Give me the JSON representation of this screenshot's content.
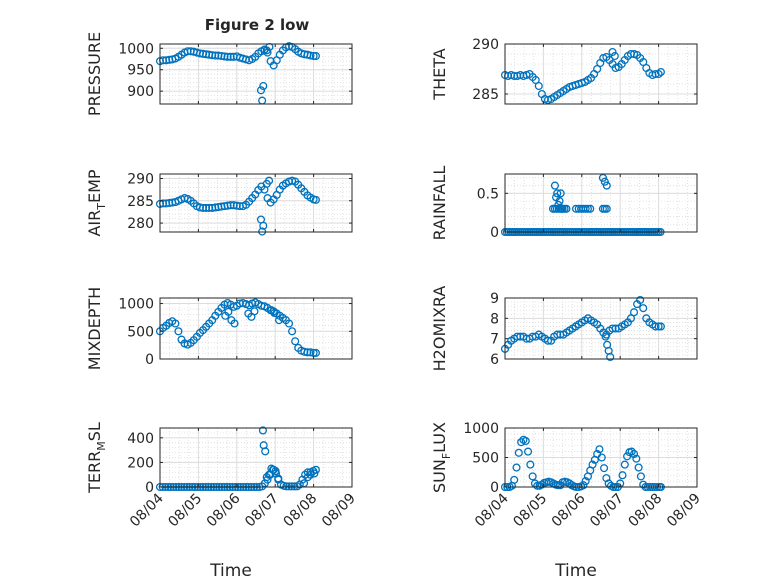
{
  "figure": {
    "title": "Figure 2 low"
  },
  "chart_data": [
    {
      "type": "scatter",
      "ylabel": "PRESSURE",
      "ylim": [
        870,
        1010
      ],
      "yticks": [
        900,
        950,
        1000
      ],
      "yticklabels": [
        "900",
        "950",
        "1000"
      ],
      "xticks": [
        0,
        1,
        2,
        3,
        4,
        5
      ],
      "xticklabels": [
        "",
        "",
        "",
        "",
        "",
        ""
      ],
      "xlabel": "",
      "x": [
        0,
        0.08,
        0.16,
        0.24,
        0.32,
        0.4,
        0.48,
        0.56,
        0.64,
        0.72,
        0.8,
        0.88,
        0.96,
        1.04,
        1.12,
        1.2,
        1.28,
        1.36,
        1.44,
        1.52,
        1.6,
        1.68,
        1.76,
        1.84,
        1.92,
        2,
        2.08,
        2.16,
        2.24,
        2.32,
        2.4,
        2.48,
        2.56,
        2.64,
        2.72,
        2.8,
        2.88,
        2.96,
        3.04,
        3.12,
        3.2,
        3.28,
        3.36,
        3.44,
        3.52,
        3.6,
        3.68,
        3.76,
        3.84,
        3.92,
        4,
        4.06,
        2.63,
        2.66,
        2.69,
        2.72,
        2.78,
        2.85
      ],
      "y": [
        970,
        972,
        972,
        973,
        974,
        976,
        980,
        985,
        990,
        993,
        993,
        992,
        990,
        988,
        987,
        986,
        985,
        984,
        983,
        983,
        982,
        981,
        980,
        980,
        980,
        981,
        978,
        976,
        974,
        972,
        975,
        980,
        988,
        993,
        996,
        990,
        970,
        960,
        972,
        985,
        995,
        1002,
        1005,
        1003,
        998,
        992,
        988,
        986,
        985,
        983,
        982,
        982,
        902,
        878,
        912,
        997,
        995,
        1003
      ]
    },
    {
      "type": "scatter",
      "ylabel": "THETA",
      "ylim": [
        284,
        290
      ],
      "yticks": [
        285,
        290
      ],
      "yticklabels": [
        "285",
        "290"
      ],
      "xticks": [
        0,
        1,
        2,
        3,
        4,
        5
      ],
      "xticklabels": [
        "",
        "",
        "",
        "",
        "",
        ""
      ],
      "xlabel": "",
      "x": [
        0,
        0.08,
        0.16,
        0.24,
        0.32,
        0.4,
        0.48,
        0.56,
        0.64,
        0.72,
        0.8,
        0.88,
        0.96,
        1.04,
        1.12,
        1.2,
        1.28,
        1.36,
        1.44,
        1.52,
        1.6,
        1.68,
        1.76,
        1.84,
        1.92,
        2,
        2.08,
        2.16,
        2.24,
        2.32,
        2.4,
        2.48,
        2.56,
        2.64,
        2.72,
        2.8,
        2.88,
        2.96,
        3.04,
        3.12,
        3.2,
        3.28,
        3.36,
        3.44,
        3.52,
        3.6,
        3.68,
        3.76,
        3.84,
        3.92,
        4,
        4.06,
        2.8,
        2.86
      ],
      "y": [
        286.9,
        286.8,
        286.9,
        286.8,
        286.8,
        286.9,
        286.8,
        286.9,
        287,
        286.7,
        286.4,
        285.8,
        285,
        284.5,
        284.4,
        284.5,
        284.7,
        284.9,
        285.1,
        285.3,
        285.5,
        285.7,
        285.8,
        285.9,
        286,
        286.1,
        286.2,
        286.4,
        286.6,
        287,
        287.5,
        288.1,
        288.6,
        288.7,
        288.4,
        288,
        287.6,
        287.7,
        288,
        288.4,
        288.8,
        289,
        289,
        288.9,
        288.6,
        288.2,
        287.6,
        287.1,
        286.9,
        287,
        287,
        287.2,
        289.2,
        288.8
      ]
    },
    {
      "type": "scatter",
      "ylabel": "AIR_TEMP",
      "ylim": [
        278,
        291
      ],
      "yticks": [
        280,
        285,
        290
      ],
      "yticklabels": [
        "280",
        "285",
        "290"
      ],
      "xticks": [
        0,
        1,
        2,
        3,
        4,
        5
      ],
      "xticklabels": [
        "",
        "",
        "",
        "",
        "",
        ""
      ],
      "xlabel": "",
      "x": [
        0,
        0.08,
        0.16,
        0.24,
        0.32,
        0.4,
        0.48,
        0.56,
        0.64,
        0.72,
        0.8,
        0.88,
        0.96,
        1.04,
        1.12,
        1.2,
        1.28,
        1.36,
        1.44,
        1.52,
        1.6,
        1.68,
        1.76,
        1.84,
        1.92,
        2,
        2.08,
        2.16,
        2.24,
        2.32,
        2.4,
        2.48,
        2.56,
        2.64,
        2.72,
        2.8,
        2.88,
        2.96,
        3.04,
        3.12,
        3.2,
        3.28,
        3.36,
        3.44,
        3.52,
        3.6,
        3.68,
        3.76,
        3.84,
        3.92,
        4,
        4.06,
        2.63,
        2.66,
        2.69,
        2.78,
        2.84
      ],
      "y": [
        284.3,
        284.4,
        284.4,
        284.5,
        284.6,
        284.7,
        285,
        285.3,
        285.6,
        285.4,
        285,
        284.4,
        283.8,
        283.5,
        283.4,
        283.4,
        283.4,
        283.4,
        283.5,
        283.6,
        283.7,
        283.8,
        283.9,
        284,
        284,
        283.9,
        283.8,
        283.8,
        284.1,
        284.8,
        285.6,
        286.4,
        287.4,
        288.2,
        287.5,
        285.6,
        284.6,
        285.3,
        286.3,
        287.5,
        288.4,
        288.9,
        289.3,
        289.5,
        289.3,
        288.6,
        287.8,
        287,
        286.2,
        285.7,
        285.3,
        285.2,
        280.8,
        278.1,
        279.4,
        288.8,
        289.5
      ]
    },
    {
      "type": "scatter",
      "ylabel": "RAINFALL",
      "ylim": [
        0,
        0.75
      ],
      "yticks": [
        0,
        0.5
      ],
      "yticklabels": [
        "0",
        "0.5"
      ],
      "xticks": [
        0,
        1,
        2,
        3,
        4,
        5
      ],
      "xticklabels": [
        "",
        "",
        "",
        "",
        "",
        ""
      ],
      "xlabel": "",
      "x": [
        0,
        0.05,
        0.1,
        0.15,
        0.2,
        0.25,
        0.3,
        0.35,
        0.4,
        0.45,
        0.5,
        0.55,
        0.6,
        0.65,
        0.7,
        0.75,
        0.8,
        0.85,
        0.9,
        0.95,
        1,
        1.05,
        1.1,
        1.15,
        1.2,
        1.25,
        1.3,
        1.35,
        1.4,
        1.45,
        1.5,
        1.55,
        1.6,
        1.65,
        1.7,
        1.75,
        1.8,
        1.85,
        1.9,
        1.95,
        2,
        2.05,
        2.1,
        2.15,
        2.2,
        2.25,
        2.3,
        2.35,
        2.4,
        2.45,
        2.5,
        2.55,
        2.6,
        2.65,
        2.7,
        2.75,
        2.8,
        2.85,
        2.9,
        2.95,
        3,
        3.05,
        3.1,
        3.15,
        3.2,
        3.25,
        3.3,
        3.35,
        3.4,
        3.45,
        3.5,
        3.55,
        3.6,
        3.65,
        3.7,
        3.75,
        3.8,
        3.85,
        3.9,
        3.95,
        4,
        4.05,
        1.25,
        1.3,
        1.35,
        1.4,
        1.45,
        1.5,
        1.55,
        1.6,
        1.3,
        1.36,
        1.42,
        1.48,
        1.33,
        1.39,
        1.45,
        1.85,
        1.92,
        1.98,
        2.04,
        2.1,
        2.16,
        2.22,
        2.55,
        2.6,
        2.65,
        2.55,
        2.6,
        2.65
      ],
      "y": [
        0,
        0,
        0,
        0,
        0,
        0,
        0,
        0,
        0,
        0,
        0,
        0,
        0,
        0,
        0,
        0,
        0,
        0,
        0,
        0,
        0,
        0,
        0,
        0,
        0,
        0,
        0,
        0,
        0,
        0,
        0,
        0,
        0,
        0,
        0,
        0,
        0,
        0,
        0,
        0,
        0,
        0,
        0,
        0,
        0,
        0,
        0,
        0,
        0,
        0,
        0,
        0,
        0,
        0,
        0,
        0,
        0,
        0,
        0,
        0,
        0,
        0,
        0,
        0,
        0,
        0,
        0,
        0,
        0,
        0,
        0,
        0,
        0,
        0,
        0,
        0,
        0,
        0,
        0,
        0,
        0,
        0,
        0.3,
        0.3,
        0.3,
        0.3,
        0.3,
        0.3,
        0.3,
        0.3,
        0.6,
        0.5,
        0.4,
        0.3,
        0.45,
        0.35,
        0.5,
        0.3,
        0.3,
        0.3,
        0.3,
        0.3,
        0.3,
        0.3,
        0.3,
        0.3,
        0.3,
        0.7,
        0.65,
        0.6
      ]
    },
    {
      "type": "scatter",
      "ylabel": "MIXDEPTH",
      "ylim": [
        0,
        1100
      ],
      "yticks": [
        0,
        500,
        1000
      ],
      "yticklabels": [
        "0",
        "500",
        "1000"
      ],
      "xticks": [
        0,
        1,
        2,
        3,
        4,
        5
      ],
      "xticklabels": [
        "",
        "",
        "",
        "",
        "",
        ""
      ],
      "xlabel": "",
      "x": [
        0,
        0.08,
        0.16,
        0.24,
        0.32,
        0.4,
        0.48,
        0.56,
        0.64,
        0.72,
        0.8,
        0.88,
        0.96,
        1.04,
        1.12,
        1.2,
        1.28,
        1.36,
        1.44,
        1.52,
        1.6,
        1.68,
        1.76,
        1.84,
        1.92,
        2,
        2.08,
        2.16,
        2.24,
        2.32,
        2.4,
        2.48,
        2.56,
        2.64,
        2.72,
        2.8,
        2.88,
        2.96,
        3.04,
        3.12,
        3.2,
        3.28,
        3.36,
        3.44,
        3.52,
        3.6,
        3.68,
        3.76,
        3.84,
        3.92,
        4,
        4.06,
        1.7,
        1.78,
        1.86,
        1.94,
        2.3,
        2.38,
        2.46,
        2.9,
        2.98,
        3.1
      ],
      "y": [
        500,
        560,
        600,
        650,
        680,
        640,
        500,
        350,
        280,
        260,
        290,
        340,
        400,
        470,
        520,
        580,
        640,
        700,
        780,
        850,
        920,
        980,
        1010,
        980,
        940,
        960,
        1000,
        1010,
        990,
        970,
        1000,
        1020,
        990,
        960,
        950,
        920,
        880,
        860,
        820,
        780,
        740,
        700,
        640,
        500,
        320,
        200,
        150,
        130,
        120,
        120,
        110,
        110,
        780,
        850,
        700,
        640,
        820,
        760,
        860,
        880,
        830,
        700
      ]
    },
    {
      "type": "scatter",
      "ylabel": "H2OMIXRA",
      "ylim": [
        6,
        9
      ],
      "yticks": [
        6,
        7,
        8,
        9
      ],
      "yticklabels": [
        "6",
        "7",
        "8",
        "9"
      ],
      "xticks": [
        0,
        1,
        2,
        3,
        4,
        5
      ],
      "xticklabels": [
        "",
        "",
        "",
        "",
        "",
        ""
      ],
      "xlabel": "",
      "x": [
        0,
        0.08,
        0.16,
        0.24,
        0.32,
        0.4,
        0.48,
        0.56,
        0.64,
        0.72,
        0.8,
        0.88,
        0.96,
        1.04,
        1.12,
        1.2,
        1.28,
        1.36,
        1.44,
        1.52,
        1.6,
        1.68,
        1.76,
        1.84,
        1.92,
        2,
        2.08,
        2.16,
        2.24,
        2.32,
        2.4,
        2.48,
        2.56,
        2.64,
        2.72,
        2.8,
        2.88,
        2.96,
        3.04,
        3.12,
        3.2,
        3.28,
        3.36,
        3.44,
        3.52,
        3.6,
        3.68,
        3.76,
        3.84,
        3.92,
        4,
        4.06,
        2.62,
        2.66,
        2.7,
        2.74
      ],
      "y": [
        6.5,
        6.7,
        6.9,
        7,
        7.1,
        7.1,
        7.1,
        7,
        7,
        7.1,
        7.1,
        7.2,
        7.1,
        7,
        6.9,
        6.9,
        7.1,
        7.2,
        7.2,
        7.2,
        7.3,
        7.4,
        7.5,
        7.6,
        7.7,
        7.8,
        7.9,
        8,
        7.9,
        7.8,
        7.7,
        7.5,
        7.3,
        7.2,
        7.4,
        7.5,
        7.5,
        7.5,
        7.6,
        7.7,
        7.8,
        8,
        8.3,
        8.7,
        8.9,
        8.5,
        8,
        7.8,
        7.7,
        7.6,
        7.6,
        7.6,
        7.1,
        6.7,
        6.4,
        6.1
      ]
    },
    {
      "type": "scatter",
      "ylabel": "TERR_MSL",
      "ylim": [
        0,
        480
      ],
      "yticks": [
        0,
        200,
        400
      ],
      "yticklabels": [
        "0",
        "200",
        "400"
      ],
      "xticks": [
        0,
        1,
        2,
        3,
        4,
        5
      ],
      "xticklabels": [
        "08/04",
        "08/05",
        "08/06",
        "08/07",
        "08/08",
        "08/09"
      ],
      "xlabel": "Time",
      "x": [
        0,
        0.07,
        0.14,
        0.21,
        0.28,
        0.35,
        0.42,
        0.49,
        0.56,
        0.63,
        0.7,
        0.77,
        0.84,
        0.91,
        0.98,
        1.05,
        1.12,
        1.19,
        1.26,
        1.33,
        1.4,
        1.47,
        1.54,
        1.61,
        1.68,
        1.75,
        1.82,
        1.89,
        1.96,
        2.03,
        2.1,
        2.17,
        2.24,
        2.31,
        2.38,
        2.45,
        2.52,
        2.59,
        2.66,
        2.73,
        2.8,
        2.87,
        2.94,
        3.01,
        3.08,
        3.15,
        3.22,
        3.29,
        3.36,
        3.43,
        3.5,
        3.57,
        3.64,
        3.71,
        3.78,
        3.85,
        3.92,
        3.99,
        4.06,
        2.68,
        2.7,
        2.74,
        2.78,
        2.84,
        2.9,
        2.96,
        3.02,
        3.08,
        3.75,
        3.85,
        3.92,
        4.02
      ],
      "y": [
        0,
        0,
        0,
        0,
        0,
        0,
        0,
        0,
        0,
        0,
        0,
        0,
        0,
        0,
        0,
        0,
        0,
        0,
        0,
        0,
        0,
        0,
        0,
        0,
        0,
        0,
        0,
        0,
        0,
        0,
        0,
        0,
        0,
        0,
        0,
        0,
        0,
        0,
        5,
        30,
        60,
        100,
        140,
        130,
        70,
        20,
        10,
        5,
        5,
        5,
        5,
        5,
        20,
        60,
        100,
        120,
        120,
        130,
        140,
        460,
        340,
        290,
        80,
        100,
        150,
        140,
        110,
        60,
        30,
        80,
        100,
        110
      ]
    },
    {
      "type": "scatter",
      "ylabel": "SUN_FLUX",
      "ylim": [
        0,
        1000
      ],
      "yticks": [
        0,
        500,
        1000
      ],
      "yticklabels": [
        "0",
        "500",
        "1000"
      ],
      "xticks": [
        0,
        1,
        2,
        3,
        4,
        5
      ],
      "xticklabels": [
        "08/04",
        "08/05",
        "08/06",
        "08/07",
        "08/08",
        "08/09"
      ],
      "xlabel": "Time",
      "x": [
        0,
        0.06,
        0.12,
        0.18,
        0.24,
        0.3,
        0.36,
        0.42,
        0.48,
        0.54,
        0.6,
        0.66,
        0.72,
        0.78,
        0.84,
        0.9,
        0.96,
        1.02,
        1.08,
        1.14,
        1.2,
        1.26,
        1.32,
        1.38,
        1.44,
        1.5,
        1.56,
        1.62,
        1.68,
        1.74,
        1.8,
        1.86,
        1.92,
        1.98,
        2.04,
        2.1,
        2.16,
        2.22,
        2.28,
        2.34,
        2.4,
        2.46,
        2.52,
        2.58,
        2.64,
        2.7,
        2.76,
        2.82,
        2.88,
        2.94,
        3,
        3.06,
        3.12,
        3.18,
        3.24,
        3.3,
        3.36,
        3.42,
        3.48,
        3.54,
        3.6,
        3.66,
        3.72,
        3.78,
        3.84,
        3.9,
        3.96,
        4.02,
        4.06
      ],
      "y": [
        0,
        0,
        0,
        20,
        120,
        330,
        580,
        760,
        800,
        780,
        600,
        380,
        180,
        60,
        20,
        20,
        40,
        70,
        80,
        90,
        80,
        60,
        40,
        30,
        30,
        80,
        90,
        80,
        60,
        30,
        10,
        0,
        0,
        10,
        30,
        100,
        180,
        280,
        380,
        460,
        560,
        640,
        500,
        320,
        150,
        60,
        20,
        0,
        0,
        0,
        60,
        200,
        380,
        520,
        590,
        600,
        560,
        480,
        330,
        180,
        40,
        0,
        0,
        0,
        0,
        0,
        0,
        0,
        0
      ]
    }
  ]
}
